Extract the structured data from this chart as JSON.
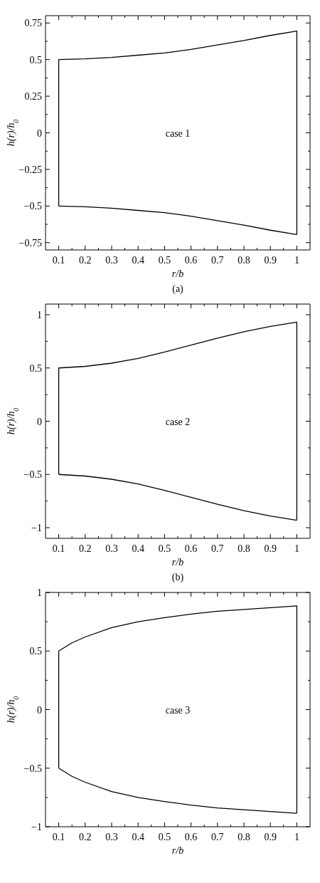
{
  "chart_data": [
    {
      "type": "line",
      "xlabel": "r/b",
      "ylabel": "h(r)/h$_{0}$",
      "xlim": [
        0.05,
        1.05
      ],
      "ylim": [
        -0.8,
        0.8
      ],
      "xticks": [
        0.1,
        {
          "value": 0.15,
          "label": null
        },
        0.2,
        {
          "value": 0.25,
          "label": null
        },
        0.3,
        {
          "value": 0.35,
          "label": null
        },
        0.4,
        {
          "value": 0.45,
          "label": null
        },
        0.5,
        {
          "value": 0.55,
          "label": null
        },
        0.6,
        {
          "value": 0.65,
          "label": null
        },
        0.7,
        {
          "value": 0.75,
          "label": null
        },
        0.8,
        {
          "value": 0.85,
          "label": null
        },
        0.9,
        {
          "value": 0.95,
          "label": null
        },
        1
      ],
      "yticks": [
        {
          "value": -0.75,
          "label": "−0.75"
        },
        {
          "value": -0.625,
          "label": null
        },
        {
          "value": -0.5,
          "label": "−0.5"
        },
        {
          "value": -0.375,
          "label": null
        },
        {
          "value": -0.25,
          "label": "−0.25"
        },
        {
          "value": -0.125,
          "label": null
        },
        0,
        {
          "value": 0.125,
          "label": null
        },
        0.25,
        {
          "value": 0.375,
          "label": null
        },
        0.5,
        {
          "value": 0.625,
          "label": null
        },
        0.75
      ],
      "annotations": [
        "case 1",
        "(a)"
      ],
      "series": [
        {
          "color": "#000000",
          "x": [
            0.1,
            0.1,
            0.2,
            0.3,
            0.4,
            0.5,
            0.6,
            0.7,
            0.8,
            0.9,
            1.0,
            1.0
          ],
          "values": [
            -0.5,
            0.5,
            0.505,
            0.515,
            0.53,
            0.545,
            0.57,
            0.6,
            0.63,
            0.665,
            0.695,
            -0.695
          ]
        },
        {
          "color": "#000000",
          "x": [
            0.1,
            0.2,
            0.3,
            0.4,
            0.5,
            0.6,
            0.7,
            0.8,
            0.9,
            1.0
          ],
          "values": [
            -0.5,
            -0.505,
            -0.515,
            -0.53,
            -0.545,
            -0.57,
            -0.6,
            -0.63,
            -0.665,
            -0.695
          ]
        }
      ]
    },
    {
      "type": "line",
      "xlabel": "r/b",
      "ylabel": "h(r)/h$_{0}$",
      "xlim": [
        0.05,
        1.05
      ],
      "ylim": [
        -1.1,
        1.1
      ],
      "xticks": [
        0.1,
        {
          "value": 0.15,
          "label": null
        },
        0.2,
        {
          "value": 0.25,
          "label": null
        },
        0.3,
        {
          "value": 0.35,
          "label": null
        },
        0.4,
        {
          "value": 0.45,
          "label": null
        },
        0.5,
        {
          "value": 0.55,
          "label": null
        },
        0.6,
        {
          "value": 0.65,
          "label": null
        },
        0.7,
        {
          "value": 0.75,
          "label": null
        },
        0.8,
        {
          "value": 0.85,
          "label": null
        },
        0.9,
        {
          "value": 0.95,
          "label": null
        },
        1
      ],
      "yticks": [
        {
          "value": -1,
          "label": "−1"
        },
        {
          "value": -0.75,
          "label": null
        },
        {
          "value": -0.5,
          "label": "−0.5"
        },
        {
          "value": -0.25,
          "label": null
        },
        0,
        {
          "value": 0.25,
          "label": null
        },
        0.5,
        {
          "value": 0.75,
          "label": null
        },
        1
      ],
      "annotations": [
        "case 2",
        "(b)"
      ],
      "series": [
        {
          "color": "#000000",
          "x": [
            0.1,
            0.1,
            0.2,
            0.3,
            0.4,
            0.5,
            0.6,
            0.7,
            0.8,
            0.9,
            1.0,
            1.0
          ],
          "values": [
            -0.5,
            0.5,
            0.515,
            0.545,
            0.59,
            0.65,
            0.715,
            0.78,
            0.84,
            0.89,
            0.93,
            -0.93
          ]
        },
        {
          "color": "#000000",
          "x": [
            0.1,
            0.2,
            0.3,
            0.4,
            0.5,
            0.6,
            0.7,
            0.8,
            0.9,
            1.0
          ],
          "values": [
            -0.5,
            -0.515,
            -0.545,
            -0.59,
            -0.65,
            -0.715,
            -0.78,
            -0.84,
            -0.89,
            -0.93
          ]
        }
      ]
    },
    {
      "type": "line",
      "xlabel": "r/b",
      "ylabel": "h(r)/h$_{0}$",
      "xlim": [
        0.05,
        1.05
      ],
      "ylim": [
        -1,
        1
      ],
      "xticks": [
        0.1,
        {
          "value": 0.15,
          "label": null
        },
        0.2,
        {
          "value": 0.25,
          "label": null
        },
        0.3,
        {
          "value": 0.35,
          "label": null
        },
        0.4,
        {
          "value": 0.45,
          "label": null
        },
        0.5,
        {
          "value": 0.55,
          "label": null
        },
        0.6,
        {
          "value": 0.65,
          "label": null
        },
        0.7,
        {
          "value": 0.75,
          "label": null
        },
        0.8,
        {
          "value": 0.85,
          "label": null
        },
        0.9,
        {
          "value": 0.95,
          "label": null
        },
        1
      ],
      "yticks": [
        {
          "value": -1,
          "label": "−1"
        },
        {
          "value": -0.75,
          "label": null
        },
        {
          "value": -0.5,
          "label": "−0.5"
        },
        {
          "value": -0.25,
          "label": null
        },
        0,
        {
          "value": 0.25,
          "label": null
        },
        0.5,
        {
          "value": 0.75,
          "label": null
        },
        1
      ],
      "annotations": [
        "case 3"
      ],
      "series": [
        {
          "color": "#000000",
          "x": [
            0.1,
            0.1,
            0.15,
            0.2,
            0.3,
            0.4,
            0.5,
            0.6,
            0.7,
            0.8,
            0.9,
            1.0,
            1.0
          ],
          "values": [
            -0.5,
            0.5,
            0.57,
            0.62,
            0.7,
            0.75,
            0.785,
            0.815,
            0.84,
            0.855,
            0.87,
            0.885,
            -0.885
          ]
        },
        {
          "color": "#000000",
          "x": [
            0.1,
            0.15,
            0.2,
            0.3,
            0.4,
            0.5,
            0.6,
            0.7,
            0.8,
            0.9,
            1.0
          ],
          "values": [
            -0.5,
            -0.57,
            -0.62,
            -0.7,
            -0.75,
            -0.785,
            -0.815,
            -0.84,
            -0.855,
            -0.87,
            -0.885
          ]
        }
      ]
    }
  ]
}
